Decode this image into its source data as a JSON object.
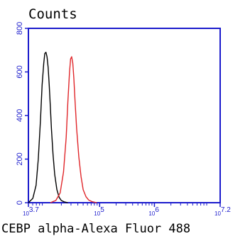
{
  "chart_data": {
    "type": "line",
    "title": "",
    "ylabel": "Counts",
    "xlabel": "CEBP alpha-Alexa Fluor 488",
    "x_scale": "log",
    "xlim_exponent": [
      3.7,
      7.2
    ],
    "ylim": [
      0,
      800
    ],
    "y_ticks": [
      0,
      200,
      400,
      600,
      800
    ],
    "y_tick_labels": [
      "0",
      "200",
      "400",
      "600",
      "800"
    ],
    "x_tick_exponents": [
      3.7,
      5,
      6,
      7.2
    ],
    "x_tick_labels": [
      {
        "base": "10",
        "exp": "3.7"
      },
      {
        "base": "10",
        "exp": "5"
      },
      {
        "base": "10",
        "exp": "6"
      },
      {
        "base": "10",
        "exp": "7.2"
      }
    ],
    "grid": false,
    "colors": {
      "axis": "#1a1acc",
      "series_black": "#000000",
      "series_red": "#e0262a"
    },
    "series": [
      {
        "color": "#000000",
        "x": [
          3.7,
          3.78,
          3.84,
          3.88,
          3.92,
          3.95,
          3.98,
          4.0,
          4.02,
          4.04,
          4.06,
          4.08,
          4.1,
          4.12,
          4.15,
          4.18,
          4.22,
          4.26,
          4.3,
          4.35,
          4.42
        ],
        "y": [
          0,
          20,
          80,
          200,
          380,
          540,
          640,
          685,
          690,
          670,
          620,
          540,
          440,
          340,
          220,
          130,
          60,
          25,
          10,
          4,
          0
        ]
      },
      {
        "color": "#e0262a",
        "x": [
          4.1,
          4.2,
          4.28,
          4.34,
          4.39,
          4.42,
          4.45,
          4.47,
          4.49,
          4.51,
          4.53,
          4.55,
          4.58,
          4.62,
          4.66,
          4.7,
          4.75,
          4.8,
          4.86,
          4.95
        ],
        "y": [
          0,
          10,
          45,
          140,
          300,
          460,
          600,
          660,
          670,
          640,
          570,
          470,
          340,
          210,
          120,
          60,
          28,
          12,
          5,
          0
        ]
      }
    ]
  }
}
